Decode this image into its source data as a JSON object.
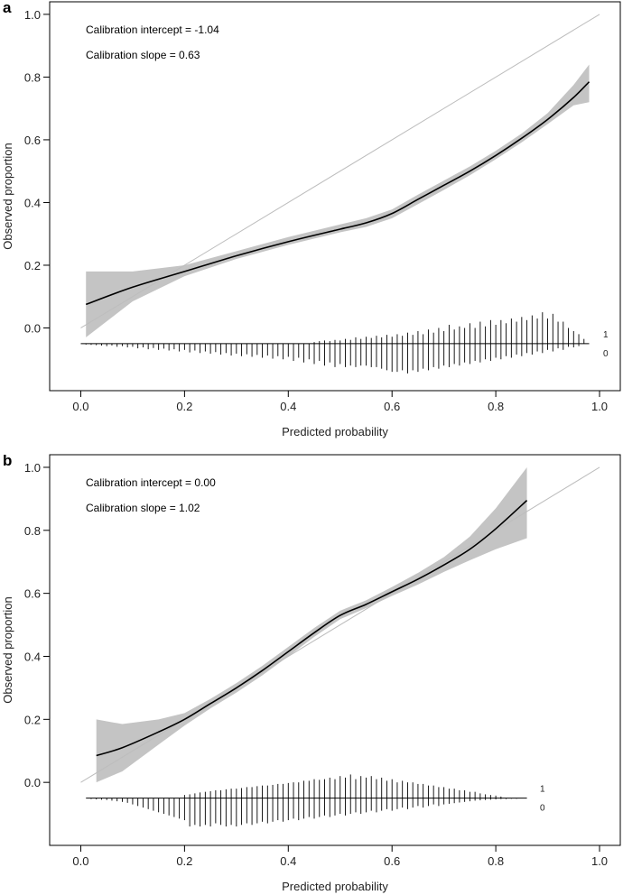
{
  "chart_data": [
    {
      "panel": "a",
      "type": "line",
      "xlabel": "Predicted probability",
      "ylabel": "Observed proportion",
      "xlim": [
        -0.06,
        1.04
      ],
      "ylim": [
        -0.2,
        1.04
      ],
      "xticks": [
        0.0,
        0.2,
        0.4,
        0.6,
        0.8,
        1.0
      ],
      "xtick_labels": [
        "0.0",
        "0.2",
        "0.4",
        "0.6",
        "0.8",
        "1.0"
      ],
      "yticks": [
        0.0,
        0.2,
        0.4,
        0.6,
        0.8,
        1.0
      ],
      "ytick_labels": [
        "0.0",
        "0.2",
        "0.4",
        "0.6",
        "0.8",
        "1.0"
      ],
      "annotations": [
        "Calibration intercept = -1.04",
        "Calibration slope = 0.63"
      ],
      "reference_line": {
        "x": [
          0.0,
          1.0
        ],
        "y": [
          0.0,
          1.0
        ]
      },
      "fit": {
        "x": [
          0.01,
          0.1,
          0.2,
          0.3,
          0.4,
          0.5,
          0.55,
          0.6,
          0.65,
          0.7,
          0.75,
          0.8,
          0.85,
          0.9,
          0.95,
          0.98
        ],
        "y": [
          0.075,
          0.13,
          0.18,
          0.23,
          0.275,
          0.315,
          0.335,
          0.365,
          0.41,
          0.455,
          0.5,
          0.55,
          0.605,
          0.665,
          0.735,
          0.785
        ],
        "lower": [
          -0.03,
          0.085,
          0.165,
          0.22,
          0.265,
          0.305,
          0.322,
          0.35,
          0.395,
          0.44,
          0.487,
          0.538,
          0.592,
          0.65,
          0.71,
          0.72
        ],
        "upper": [
          0.18,
          0.18,
          0.2,
          0.245,
          0.29,
          0.33,
          0.35,
          0.378,
          0.425,
          0.47,
          0.515,
          0.565,
          0.62,
          0.685,
          0.775,
          0.84
        ]
      },
      "rug": {
        "baseline_y": -0.05,
        "x_start": 0.0,
        "x_end": 0.98,
        "label_events": "1",
        "label_nonevents": "0",
        "events": {
          "x": [
            0.45,
            0.46,
            0.47,
            0.48,
            0.49,
            0.5,
            0.51,
            0.52,
            0.53,
            0.54,
            0.55,
            0.56,
            0.57,
            0.58,
            0.59,
            0.6,
            0.61,
            0.62,
            0.63,
            0.64,
            0.65,
            0.66,
            0.67,
            0.68,
            0.69,
            0.7,
            0.71,
            0.72,
            0.73,
            0.74,
            0.75,
            0.76,
            0.77,
            0.78,
            0.79,
            0.8,
            0.81,
            0.82,
            0.83,
            0.84,
            0.85,
            0.86,
            0.87,
            0.88,
            0.89,
            0.9,
            0.91,
            0.92,
            0.93,
            0.94,
            0.95,
            0.96,
            0.97
          ],
          "len": [
            0.005,
            0.008,
            0.01,
            0.008,
            0.012,
            0.01,
            0.015,
            0.012,
            0.02,
            0.015,
            0.022,
            0.018,
            0.025,
            0.02,
            0.028,
            0.022,
            0.03,
            0.025,
            0.035,
            0.028,
            0.04,
            0.03,
            0.045,
            0.035,
            0.05,
            0.04,
            0.06,
            0.045,
            0.055,
            0.05,
            0.065,
            0.05,
            0.07,
            0.055,
            0.075,
            0.06,
            0.075,
            0.065,
            0.08,
            0.07,
            0.085,
            0.075,
            0.09,
            0.08,
            0.1,
            0.08,
            0.095,
            0.07,
            0.07,
            0.05,
            0.04,
            0.03,
            0.015
          ]
        },
        "nonevents": {
          "x": [
            0.01,
            0.02,
            0.03,
            0.04,
            0.05,
            0.06,
            0.07,
            0.08,
            0.09,
            0.1,
            0.11,
            0.12,
            0.13,
            0.14,
            0.15,
            0.16,
            0.17,
            0.18,
            0.19,
            0.2,
            0.21,
            0.22,
            0.23,
            0.24,
            0.25,
            0.26,
            0.27,
            0.28,
            0.29,
            0.3,
            0.31,
            0.32,
            0.33,
            0.34,
            0.35,
            0.36,
            0.37,
            0.38,
            0.39,
            0.4,
            0.41,
            0.42,
            0.43,
            0.44,
            0.45,
            0.46,
            0.47,
            0.48,
            0.49,
            0.5,
            0.51,
            0.52,
            0.53,
            0.54,
            0.55,
            0.56,
            0.57,
            0.58,
            0.59,
            0.6,
            0.61,
            0.62,
            0.63,
            0.64,
            0.65,
            0.66,
            0.67,
            0.68,
            0.69,
            0.7,
            0.71,
            0.72,
            0.73,
            0.74,
            0.75,
            0.76,
            0.77,
            0.78,
            0.79,
            0.8,
            0.81,
            0.82,
            0.83,
            0.84,
            0.85,
            0.86,
            0.87,
            0.88,
            0.89,
            0.9,
            0.91,
            0.92,
            0.93,
            0.94,
            0.95,
            0.96
          ],
          "len": [
            0.003,
            0.004,
            0.005,
            0.006,
            0.008,
            0.006,
            0.01,
            0.008,
            0.012,
            0.01,
            0.015,
            0.012,
            0.018,
            0.014,
            0.02,
            0.016,
            0.022,
            0.018,
            0.025,
            0.02,
            0.028,
            0.022,
            0.03,
            0.025,
            0.032,
            0.027,
            0.035,
            0.03,
            0.038,
            0.032,
            0.04,
            0.034,
            0.042,
            0.036,
            0.045,
            0.038,
            0.048,
            0.04,
            0.05,
            0.042,
            0.055,
            0.045,
            0.06,
            0.05,
            0.065,
            0.055,
            0.07,
            0.06,
            0.075,
            0.065,
            0.075,
            0.07,
            0.075,
            0.07,
            0.07,
            0.075,
            0.075,
            0.08,
            0.085,
            0.09,
            0.09,
            0.085,
            0.095,
            0.085,
            0.09,
            0.08,
            0.085,
            0.075,
            0.08,
            0.07,
            0.075,
            0.065,
            0.07,
            0.06,
            0.065,
            0.055,
            0.06,
            0.05,
            0.055,
            0.045,
            0.05,
            0.04,
            0.045,
            0.035,
            0.04,
            0.03,
            0.035,
            0.025,
            0.03,
            0.02,
            0.025,
            0.015,
            0.02,
            0.01,
            0.012,
            0.008
          ]
        }
      }
    },
    {
      "panel": "b",
      "type": "line",
      "xlabel": "Predicted probability",
      "ylabel": "Observed proportion",
      "xlim": [
        -0.06,
        1.04
      ],
      "ylim": [
        -0.2,
        1.04
      ],
      "xticks": [
        0.0,
        0.2,
        0.4,
        0.6,
        0.8,
        1.0
      ],
      "xtick_labels": [
        "0.0",
        "0.2",
        "0.4",
        "0.6",
        "0.8",
        "1.0"
      ],
      "yticks": [
        0.0,
        0.2,
        0.4,
        0.6,
        0.8,
        1.0
      ],
      "ytick_labels": [
        "0.0",
        "0.2",
        "0.4",
        "0.6",
        "0.8",
        "1.0"
      ],
      "annotations": [
        "Calibration intercept = 0.00",
        "Calibration slope = 1.02"
      ],
      "reference_line": {
        "x": [
          0.0,
          1.0
        ],
        "y": [
          0.0,
          1.0
        ]
      },
      "fit": {
        "x": [
          0.03,
          0.08,
          0.15,
          0.2,
          0.25,
          0.3,
          0.35,
          0.4,
          0.45,
          0.5,
          0.55,
          0.6,
          0.65,
          0.7,
          0.75,
          0.8,
          0.86
        ],
        "y": [
          0.085,
          0.11,
          0.16,
          0.2,
          0.25,
          0.3,
          0.355,
          0.415,
          0.475,
          0.53,
          0.565,
          0.605,
          0.645,
          0.69,
          0.74,
          0.805,
          0.895
        ],
        "lower": [
          0.0,
          0.035,
          0.12,
          0.18,
          0.235,
          0.285,
          0.34,
          0.4,
          0.462,
          0.518,
          0.553,
          0.592,
          0.628,
          0.668,
          0.705,
          0.74,
          0.775
        ],
        "upper": [
          0.2,
          0.185,
          0.2,
          0.22,
          0.265,
          0.315,
          0.37,
          0.43,
          0.49,
          0.545,
          0.578,
          0.62,
          0.665,
          0.715,
          0.78,
          0.87,
          1.0
        ]
      },
      "rug": {
        "baseline_y": -0.05,
        "x_start": 0.01,
        "x_end": 0.86,
        "label_events": "1",
        "label_nonevents": "0",
        "events": {
          "x": [
            0.2,
            0.21,
            0.22,
            0.23,
            0.24,
            0.25,
            0.26,
            0.27,
            0.28,
            0.29,
            0.3,
            0.31,
            0.32,
            0.33,
            0.34,
            0.35,
            0.36,
            0.37,
            0.38,
            0.39,
            0.4,
            0.41,
            0.42,
            0.43,
            0.44,
            0.45,
            0.46,
            0.47,
            0.48,
            0.49,
            0.5,
            0.51,
            0.52,
            0.53,
            0.54,
            0.55,
            0.56,
            0.57,
            0.58,
            0.59,
            0.6,
            0.61,
            0.62,
            0.63,
            0.64,
            0.65,
            0.66,
            0.67,
            0.68,
            0.69,
            0.7,
            0.71,
            0.72,
            0.73,
            0.74,
            0.75,
            0.76,
            0.77,
            0.78,
            0.79,
            0.8,
            0.81
          ],
          "len": [
            0.01,
            0.012,
            0.015,
            0.018,
            0.02,
            0.022,
            0.025,
            0.025,
            0.028,
            0.03,
            0.03,
            0.032,
            0.035,
            0.035,
            0.038,
            0.04,
            0.04,
            0.042,
            0.045,
            0.045,
            0.048,
            0.05,
            0.05,
            0.055,
            0.055,
            0.06,
            0.058,
            0.06,
            0.065,
            0.06,
            0.07,
            0.065,
            0.075,
            0.06,
            0.07,
            0.065,
            0.07,
            0.06,
            0.065,
            0.055,
            0.06,
            0.05,
            0.055,
            0.05,
            0.05,
            0.045,
            0.045,
            0.04,
            0.04,
            0.035,
            0.035,
            0.03,
            0.03,
            0.025,
            0.025,
            0.02,
            0.02,
            0.015,
            0.012,
            0.01,
            0.008,
            0.005
          ]
        },
        "nonevents": {
          "x": [
            0.02,
            0.03,
            0.04,
            0.05,
            0.06,
            0.07,
            0.08,
            0.09,
            0.1,
            0.11,
            0.12,
            0.13,
            0.14,
            0.15,
            0.16,
            0.17,
            0.18,
            0.19,
            0.2,
            0.21,
            0.22,
            0.23,
            0.24,
            0.25,
            0.26,
            0.27,
            0.28,
            0.29,
            0.3,
            0.31,
            0.32,
            0.33,
            0.34,
            0.35,
            0.36,
            0.37,
            0.38,
            0.39,
            0.4,
            0.41,
            0.42,
            0.43,
            0.44,
            0.45,
            0.46,
            0.47,
            0.48,
            0.49,
            0.5,
            0.51,
            0.52,
            0.53,
            0.54,
            0.55,
            0.56,
            0.57,
            0.58,
            0.59,
            0.6,
            0.61,
            0.62,
            0.63,
            0.64,
            0.65,
            0.66,
            0.67,
            0.68,
            0.69,
            0.7,
            0.71,
            0.72,
            0.73,
            0.74,
            0.75,
            0.76,
            0.77,
            0.78,
            0.79,
            0.8,
            0.81,
            0.82,
            0.83,
            0.84
          ],
          "len": [
            0.003,
            0.004,
            0.005,
            0.006,
            0.008,
            0.01,
            0.012,
            0.015,
            0.02,
            0.025,
            0.03,
            0.035,
            0.04,
            0.045,
            0.05,
            0.055,
            0.06,
            0.065,
            0.07,
            0.09,
            0.085,
            0.09,
            0.085,
            0.09,
            0.08,
            0.085,
            0.09,
            0.085,
            0.09,
            0.085,
            0.08,
            0.085,
            0.08,
            0.075,
            0.08,
            0.075,
            0.07,
            0.075,
            0.07,
            0.065,
            0.07,
            0.065,
            0.06,
            0.065,
            0.06,
            0.055,
            0.06,
            0.055,
            0.05,
            0.055,
            0.05,
            0.045,
            0.05,
            0.045,
            0.04,
            0.045,
            0.04,
            0.035,
            0.04,
            0.035,
            0.03,
            0.035,
            0.03,
            0.025,
            0.03,
            0.025,
            0.02,
            0.025,
            0.02,
            0.018,
            0.016,
            0.014,
            0.012,
            0.01,
            0.008,
            0.007,
            0.006,
            0.005,
            0.004,
            0.003,
            0.003,
            0.002,
            0.002
          ]
        }
      }
    }
  ]
}
